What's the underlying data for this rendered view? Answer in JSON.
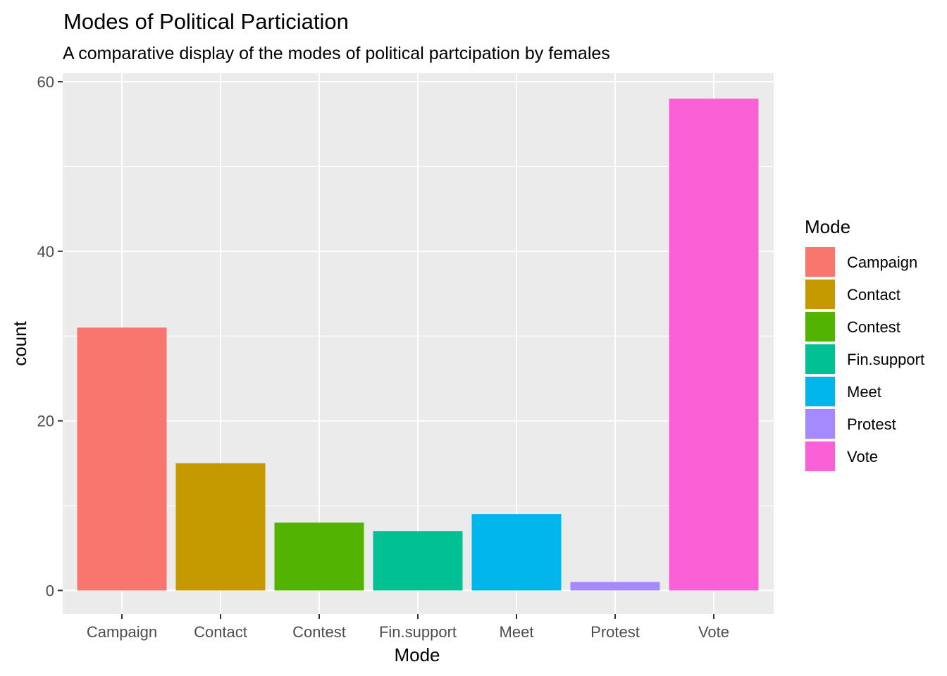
{
  "chart_data": {
    "type": "bar",
    "title": "Modes of Political Particiation",
    "subtitle": "A comparative display of the modes of political partcipation by females",
    "xlabel": "Mode",
    "ylabel": "count",
    "categories": [
      "Campaign",
      "Contact",
      "Contest",
      "Fin.support",
      "Meet",
      "Protest",
      "Vote"
    ],
    "values": [
      31,
      15,
      8,
      7,
      9,
      1,
      58
    ],
    "colors": [
      "#F8766D",
      "#C49A00",
      "#53B400",
      "#00C094",
      "#00B6EB",
      "#A58AFF",
      "#FB61D7"
    ],
    "ylim": [
      0,
      60
    ],
    "yticks": [
      0,
      20,
      40,
      60
    ],
    "y_minor_ticks": [
      10,
      30,
      50
    ],
    "grid": true,
    "panel_background": "#EBEBEB",
    "grid_color": "#FFFFFF",
    "legend": {
      "title": "Mode",
      "placement": "right"
    }
  }
}
